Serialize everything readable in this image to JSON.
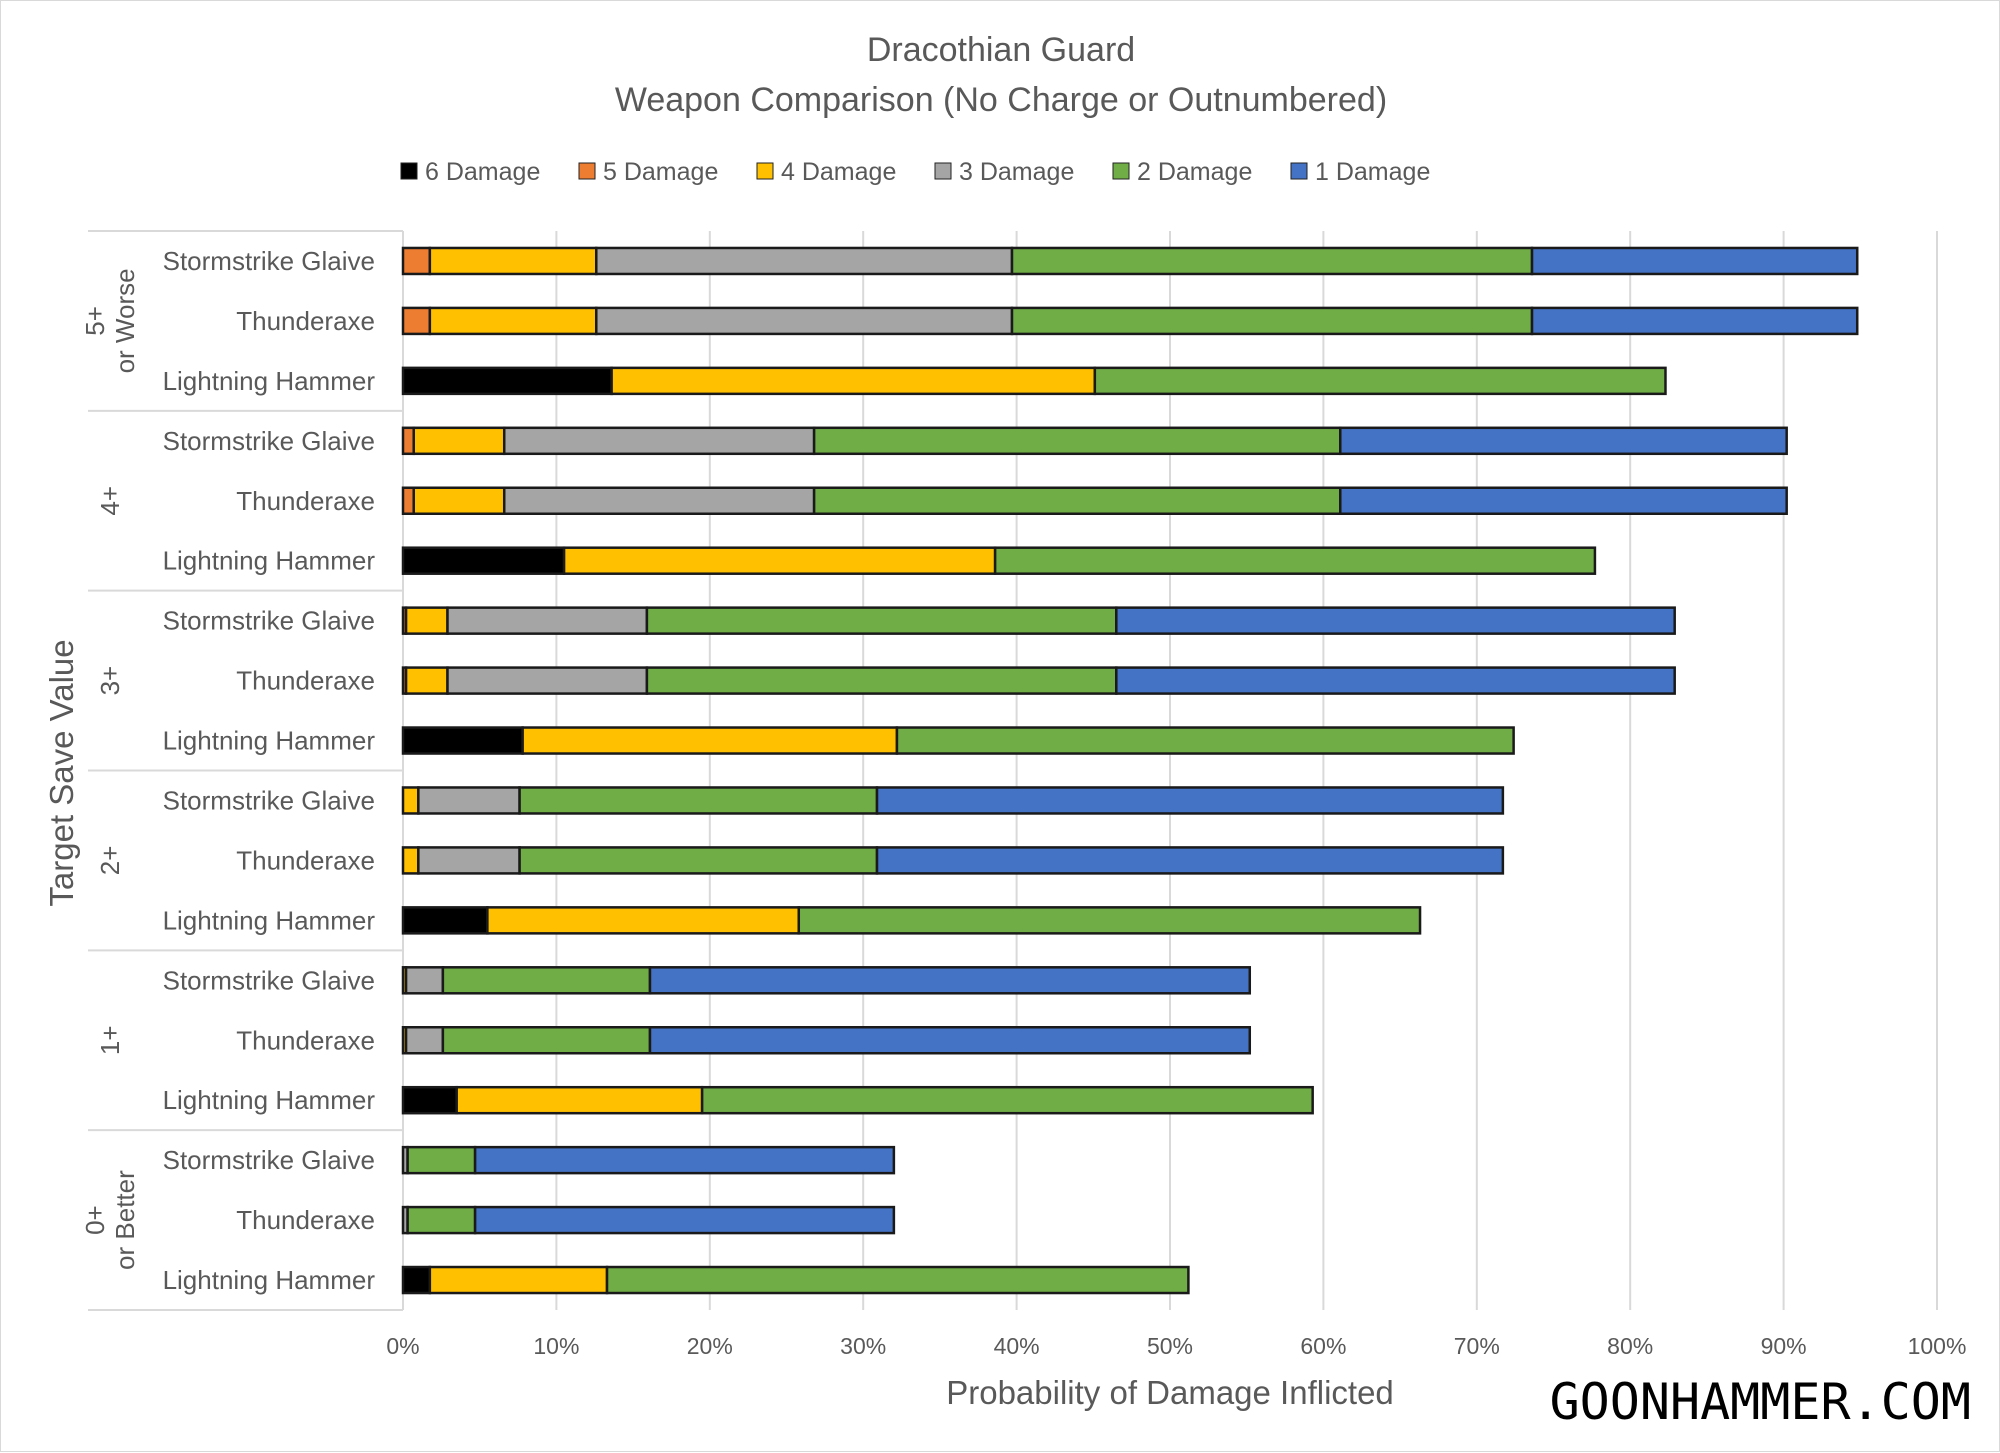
{
  "chart_data": {
    "type": "bar",
    "orientation": "horizontal",
    "stacked": true,
    "title": "Dracothian Guard",
    "subtitle": "Weapon Comparison (No Charge or Outnumbered)",
    "xlabel": "Probability of Damage Inflicted",
    "ylabel": "Target Save Value",
    "xlim": [
      0,
      100
    ],
    "x_ticks": [
      "0%",
      "10%",
      "20%",
      "30%",
      "40%",
      "50%",
      "60%",
      "70%",
      "80%",
      "90%",
      "100%"
    ],
    "grid": true,
    "legend_position": "top",
    "groups": [
      {
        "label": [
          "5+",
          "or Worse"
        ],
        "categories": [
          "Stormstrike Glaive",
          "Thunderaxe",
          "Lightning Hammer"
        ]
      },
      {
        "label": [
          "4+"
        ],
        "categories": [
          "Stormstrike Glaive",
          "Thunderaxe",
          "Lightning Hammer"
        ]
      },
      {
        "label": [
          "3+"
        ],
        "categories": [
          "Stormstrike Glaive",
          "Thunderaxe",
          "Lightning Hammer"
        ]
      },
      {
        "label": [
          "2+"
        ],
        "categories": [
          "Stormstrike Glaive",
          "Thunderaxe",
          "Lightning Hammer"
        ]
      },
      {
        "label": [
          "1+"
        ],
        "categories": [
          "Stormstrike Glaive",
          "Thunderaxe",
          "Lightning Hammer"
        ]
      },
      {
        "label": [
          "0+",
          "or Better"
        ],
        "categories": [
          "Stormstrike Glaive",
          "Thunderaxe",
          "Lightning Hammer"
        ]
      }
    ],
    "series": [
      {
        "name": "6 Damage",
        "color": "#000000",
        "values": [
          0,
          0,
          13.6,
          0,
          0,
          10.5,
          0,
          0,
          7.8,
          0,
          0,
          5.5,
          0,
          0,
          3.5,
          0,
          0,
          1.75
        ]
      },
      {
        "name": "5 Damage",
        "color": "#ED7D31",
        "values": [
          1.75,
          1.75,
          0,
          0.7,
          0.7,
          0,
          0.2,
          0.2,
          0,
          0,
          0,
          0,
          0,
          0,
          0,
          0,
          0,
          0
        ]
      },
      {
        "name": "4 Damage",
        "color": "#FFC000",
        "values": [
          10.85,
          10.85,
          31.5,
          5.9,
          5.9,
          28.1,
          2.7,
          2.7,
          24.4,
          1.0,
          1.0,
          20.3,
          0.2,
          0.2,
          16.0,
          0,
          0,
          11.55
        ]
      },
      {
        "name": "3 Damage",
        "color": "#A5A5A5",
        "values": [
          27.1,
          27.1,
          0,
          20.2,
          20.2,
          0,
          13.0,
          13.0,
          0,
          6.6,
          6.6,
          0,
          2.4,
          2.4,
          0,
          0.3,
          0.3,
          0
        ]
      },
      {
        "name": "2 Damage",
        "color": "#70AD47",
        "values": [
          33.9,
          33.9,
          37.2,
          34.3,
          34.3,
          39.1,
          30.6,
          30.6,
          40.2,
          23.3,
          23.3,
          40.5,
          13.5,
          13.5,
          39.8,
          4.4,
          4.4,
          37.9
        ]
      },
      {
        "name": "1 Damage",
        "color": "#4472C4",
        "values": [
          21.2,
          21.2,
          0,
          29.1,
          29.1,
          0,
          36.4,
          36.4,
          0,
          40.8,
          40.8,
          0,
          39.1,
          39.1,
          0,
          27.3,
          27.3,
          0
        ]
      }
    ]
  },
  "watermark": "GOONHAMMER.COM"
}
